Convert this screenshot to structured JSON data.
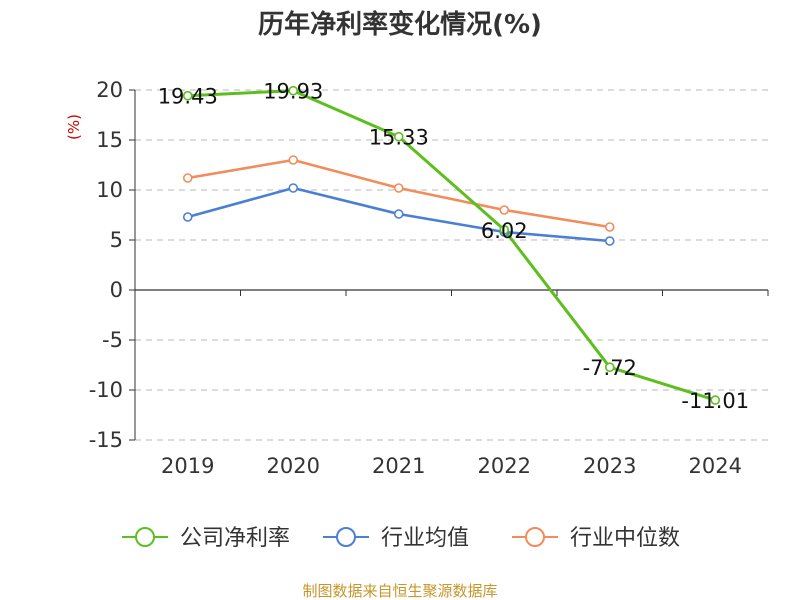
{
  "chart_data": {
    "type": "line",
    "title": "历年净利率变化情况(%)",
    "ylabel": "(%)",
    "xlabel": "",
    "categories": [
      "2019",
      "2020",
      "2021",
      "2022",
      "2023",
      "2024"
    ],
    "ylim": [
      -15,
      20
    ],
    "yticks": [
      20,
      15,
      10,
      5,
      0,
      -5,
      -10,
      -15
    ],
    "grid": true,
    "legend_position": "bottom",
    "series": [
      {
        "name": "公司净利率",
        "color": "#5cbf1e",
        "values": [
          19.43,
          19.93,
          15.33,
          6.02,
          -7.72,
          -11.01
        ],
        "labels": [
          "19.43",
          "19.93",
          "15.33",
          "6.02",
          "-7.72",
          "-11.01"
        ]
      },
      {
        "name": "行业均值",
        "color": "#4a7fd6",
        "values": [
          7.3,
          10.2,
          7.6,
          5.8,
          4.9,
          null
        ]
      },
      {
        "name": "行业中位数",
        "color": "#f28c5a",
        "values": [
          11.2,
          13.0,
          10.2,
          8.0,
          6.3,
          null
        ]
      }
    ]
  },
  "footer": {
    "source": "制图数据来自恒生聚源数据库"
  }
}
